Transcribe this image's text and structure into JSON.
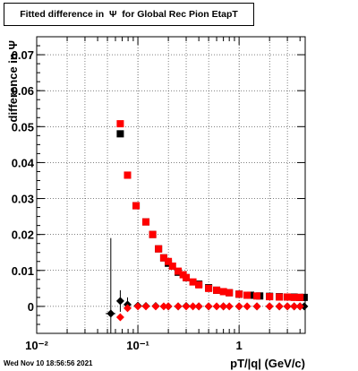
{
  "title": "Fitted difference in  Ψ  for Global Rec Pion EtapT",
  "footer": "Wed Nov 10 18:56:56 2021",
  "colors": {
    "black_series": "#000000",
    "red_series": "#ff0000",
    "grid": "#000000"
  },
  "chart_data": {
    "type": "scatter",
    "title": "Fitted difference in  Ψ  for Global Rec Pion EtapT",
    "xlabel": "pT/|q| (GeV/c)",
    "ylabel": "difference in  Ψ",
    "x_scale": "log",
    "xlim": [
      0.01,
      4.5
    ],
    "ylim": [
      -0.0075,
      0.075
    ],
    "grid": true,
    "x_ticks": [
      {
        "value": 0.01,
        "label": "10⁻²"
      },
      {
        "value": 0.1,
        "label": "10⁻¹"
      },
      {
        "value": 1,
        "label": "1"
      }
    ],
    "y_ticks": [
      {
        "value": 0,
        "label": "0"
      },
      {
        "value": 0.01,
        "label": "0.01"
      },
      {
        "value": 0.02,
        "label": "0.02"
      },
      {
        "value": 0.03,
        "label": "0.03"
      },
      {
        "value": 0.04,
        "label": "0.04"
      },
      {
        "value": 0.05,
        "label": "0.05"
      },
      {
        "value": 0.06,
        "label": "0.06"
      },
      {
        "value": 0.07,
        "label": "0.07"
      }
    ],
    "series": [
      {
        "color": "#000000",
        "marker": "square",
        "x": [
          0.067,
          0.079,
          0.096,
          0.12,
          0.14,
          0.16,
          0.18,
          0.2,
          0.25,
          0.3,
          0.4,
          0.5,
          0.6,
          0.8,
          1.0,
          1.3,
          1.6,
          2.0,
          2.5,
          3.0,
          3.5,
          4.0,
          4.4
        ],
        "y": [
          0.048,
          0.0365,
          0.028,
          0.0235,
          0.02,
          0.016,
          0.0135,
          0.012,
          0.0095,
          0.008,
          0.0062,
          0.0052,
          0.0045,
          0.0038,
          0.0034,
          0.0031,
          0.0029,
          0.0028,
          0.0027,
          0.0026,
          0.0026,
          0.0025,
          0.0025
        ],
        "xerr": [
          0.002,
          0.003,
          0.004,
          0.006,
          0.007,
          0.008,
          0.009,
          0.01,
          0.012,
          0.015,
          0.02,
          0.025,
          0.03,
          0.04,
          0.05,
          0.06,
          0.08,
          0.1,
          0.12,
          0.15,
          0.17,
          0.2,
          0.2
        ]
      },
      {
        "color": "#ff0000",
        "marker": "square",
        "x": [
          0.067,
          0.079,
          0.096,
          0.12,
          0.14,
          0.16,
          0.18,
          0.2,
          0.22,
          0.25,
          0.28,
          0.3,
          0.35,
          0.4,
          0.5,
          0.6,
          0.7,
          0.8,
          1.0,
          1.2,
          1.5,
          2.0,
          2.5,
          3.0,
          3.5,
          4.0
        ],
        "y": [
          0.0508,
          0.0365,
          0.028,
          0.0235,
          0.02,
          0.016,
          0.0135,
          0.0125,
          0.0112,
          0.0098,
          0.0088,
          0.008,
          0.0068,
          0.006,
          0.005,
          0.0045,
          0.0041,
          0.0038,
          0.0034,
          0.0031,
          0.0029,
          0.0027,
          0.0026,
          0.0026,
          0.0025,
          0.0025
        ],
        "xerr": [
          0.002,
          0.003,
          0.004,
          0.006,
          0.007,
          0.008,
          0.009,
          0.01,
          0.011,
          0.012,
          0.014,
          0.015,
          0.017,
          0.02,
          0.025,
          0.03,
          0.035,
          0.04,
          0.05,
          0.06,
          0.08,
          0.1,
          0.12,
          0.15,
          0.17,
          0.2
        ]
      },
      {
        "color": "#000000",
        "marker": "diamond",
        "x": [
          0.054,
          0.067,
          0.079,
          0.1,
          0.12,
          0.15,
          0.2,
          0.25,
          0.3,
          0.4,
          0.5,
          0.7,
          1.0,
          1.5,
          2.0,
          2.5,
          3.0,
          3.5,
          4.0,
          4.4
        ],
        "y": [
          -0.002,
          0.0015,
          0.0005,
          0.0002,
          0.0001,
          0.0001,
          0.0,
          0.0,
          0.0001,
          0.0,
          0.0,
          0.0,
          0.0,
          0.0,
          0.0,
          0.0,
          0.0,
          0.0,
          0.0,
          0.0
        ],
        "yerr": [
          0.021,
          0.003,
          0.002,
          0.001,
          0.0008,
          0.0006,
          0.0005,
          0.0004,
          0.0004,
          0.0003,
          0.0003,
          0.0003,
          0.0003,
          0.0003,
          0.0003,
          0.0003,
          0.0003,
          0.0003,
          0.0003,
          0.0003
        ],
        "xerr": [
          0.006,
          0.002,
          0.003,
          0.004,
          0.006,
          0.007,
          0.01,
          0.012,
          0.015,
          0.02,
          0.025,
          0.035,
          0.05,
          0.08,
          0.1,
          0.12,
          0.15,
          0.17,
          0.2,
          0.2
        ]
      },
      {
        "color": "#ff0000",
        "marker": "diamond",
        "x": [
          0.067,
          0.079,
          0.1,
          0.12,
          0.15,
          0.18,
          0.2,
          0.25,
          0.3,
          0.35,
          0.4,
          0.5,
          0.6,
          0.7,
          0.8,
          1.0,
          1.2,
          1.5,
          2.0,
          2.5,
          3.0,
          3.5,
          4.0
        ],
        "y": [
          -0.003,
          -0.0005,
          0.0,
          0.0,
          0.0,
          0.0,
          0.0,
          0.0,
          0.0,
          0.0,
          0.0,
          0.0,
          0.0,
          0.0,
          0.0,
          0.0,
          0.0,
          0.0,
          0.0,
          0.0,
          0.0,
          0.0,
          0.0
        ],
        "xerr": [
          0.002,
          0.003,
          0.004,
          0.006,
          0.007,
          0.009,
          0.01,
          0.012,
          0.015,
          0.017,
          0.02,
          0.025,
          0.03,
          0.035,
          0.04,
          0.05,
          0.06,
          0.08,
          0.1,
          0.12,
          0.15,
          0.17,
          0.2
        ]
      }
    ]
  }
}
